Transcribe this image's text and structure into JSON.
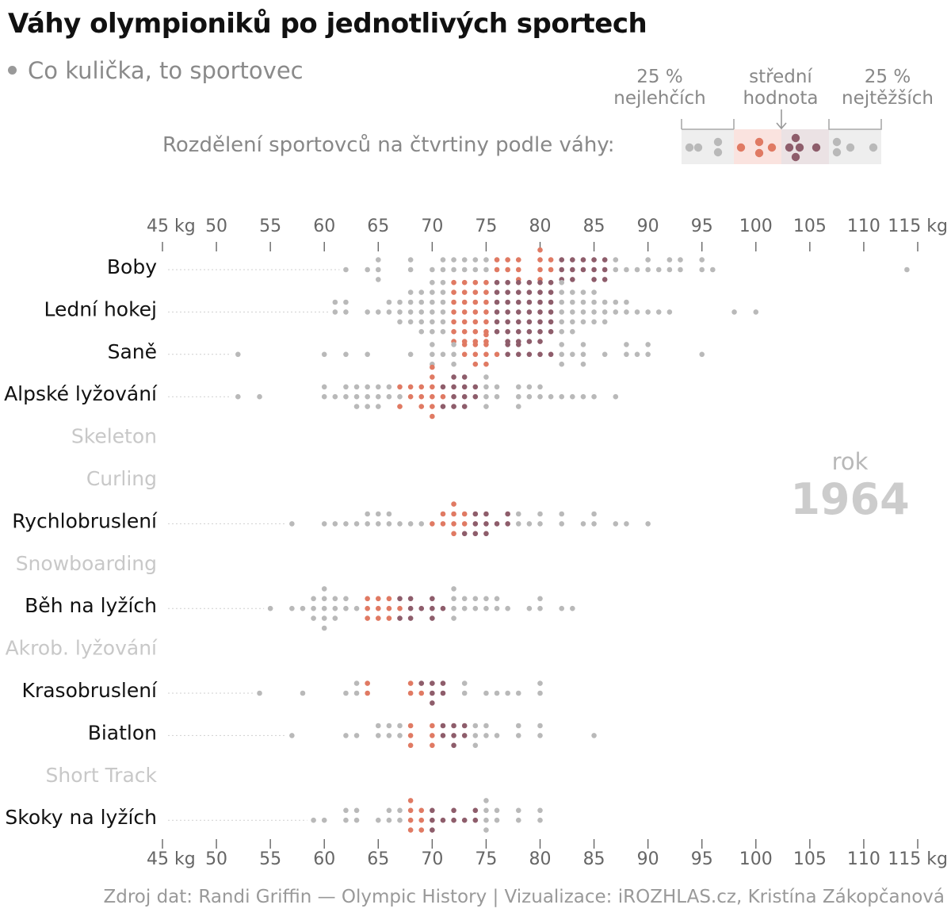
{
  "title": "Váhy olympioniků po jednotlivých sportech",
  "subtitle": "Co kulička, to sportovec",
  "legend": {
    "text": "Rozdělení sportovců na čtvrtiny podle váhy:",
    "lightest_pct": "25 %",
    "lightest_word": "nejlehčích",
    "median_top": "střední",
    "median_bottom": "hodnota",
    "heaviest_pct": "25 %",
    "heaviest_word": "nejtěžších"
  },
  "year_label": "rok",
  "year_value": "1964",
  "source": "Zdroj dat: Randi Griffin — Olympic History  |  Vizualizace: iROZHLAS.cz, Kristína Zákopčanová",
  "colors": {
    "outer": "#b9b9b9",
    "q2": "#e07a63",
    "q3": "#8e5d6b",
    "label_active": "#111111",
    "label_inactive": "#c8c8c8",
    "axis": "#666666"
  },
  "chart_data": {
    "type": "scatter",
    "subtype": "beeswarm",
    "x_unit": "kg",
    "xlim": [
      45,
      115
    ],
    "ticks": [
      {
        "v": 45,
        "label": "45 kg"
      },
      {
        "v": 50,
        "label": "50"
      },
      {
        "v": 55,
        "label": "55"
      },
      {
        "v": 60,
        "label": "60"
      },
      {
        "v": 65,
        "label": "65"
      },
      {
        "v": 70,
        "label": "70"
      },
      {
        "v": 75,
        "label": "75"
      },
      {
        "v": 80,
        "label": "80"
      },
      {
        "v": 85,
        "label": "85"
      },
      {
        "v": 90,
        "label": "90"
      },
      {
        "v": 95,
        "label": "95"
      },
      {
        "v": 100,
        "label": "100"
      },
      {
        "v": 105,
        "label": "105"
      },
      {
        "v": 110,
        "label": "110"
      },
      {
        "v": 115,
        "label": "115 kg"
      }
    ],
    "sports": [
      {
        "name": "Boby",
        "active": true,
        "min": 62,
        "max": 114,
        "groups": [
          {
            "q": 1,
            "weights": [
              62,
              64,
              65,
              65,
              65,
              68,
              68,
              70,
              71,
              71,
              72,
              72,
              73,
              73,
              74,
              74,
              75,
              75
            ]
          },
          {
            "q": 2,
            "weights": [
              76,
              76,
              77,
              77,
              78,
              78,
              78,
              80,
              80,
              80,
              80,
              81,
              81
            ]
          },
          {
            "q": 3,
            "weights": [
              82,
              82,
              82,
              83,
              83,
              83,
              84,
              84,
              85,
              85,
              85,
              86,
              86,
              86
            ]
          },
          {
            "q": 4,
            "weights": [
              87,
              87,
              88,
              89,
              90,
              90,
              91,
              92,
              92,
              93,
              93,
              95,
              95,
              96,
              114
            ]
          }
        ]
      },
      {
        "name": "Lední hokej",
        "active": true,
        "min": 61,
        "max": 100,
        "groups": [
          {
            "q": 1,
            "weights": [
              61,
              61,
              62,
              62,
              64,
              65,
              66,
              66,
              67,
              67,
              67,
              68,
              68,
              68,
              68,
              69,
              69,
              69,
              69,
              69,
              70,
              70,
              70,
              70,
              70,
              70,
              71,
              71,
              71,
              71,
              71,
              71
            ]
          },
          {
            "q": 2,
            "weights": [
              72,
              72,
              72,
              72,
              72,
              72,
              72,
              73,
              73,
              73,
              73,
              73,
              73,
              73,
              74,
              74,
              74,
              74,
              74,
              74,
              74,
              75,
              75,
              75,
              75,
              75,
              75,
              75
            ]
          },
          {
            "q": 3,
            "weights": [
              76,
              76,
              76,
              76,
              76,
              76,
              77,
              77,
              77,
              77,
              77,
              77,
              77,
              78,
              78,
              78,
              78,
              78,
              78,
              78,
              79,
              79,
              79,
              79,
              79,
              79,
              79,
              80,
              80,
              80,
              80,
              80,
              80,
              80,
              81,
              81,
              81,
              81,
              81,
              81
            ]
          },
          {
            "q": 4,
            "weights": [
              82,
              82,
              82,
              82,
              82,
              82,
              83,
              83,
              83,
              83,
              83,
              84,
              84,
              84,
              84,
              85,
              85,
              85,
              85,
              86,
              86,
              86,
              87,
              87,
              88,
              88,
              89,
              90,
              91,
              92,
              98,
              100
            ]
          }
        ]
      },
      {
        "name": "Saně",
        "active": true,
        "min": 52,
        "max": 95,
        "groups": [
          {
            "q": 1,
            "weights": [
              52,
              60,
              62,
              64,
              68,
              70,
              70,
              70,
              71,
              72,
              72,
              72
            ]
          },
          {
            "q": 2,
            "weights": [
              73,
              73,
              74,
              74,
              74,
              75,
              75,
              75,
              75,
              76
            ]
          },
          {
            "q": 3,
            "weights": [
              77,
              77,
              78,
              78,
              79,
              80,
              81
            ]
          },
          {
            "q": 4,
            "weights": [
              82,
              82,
              82,
              83,
              84,
              84,
              84,
              86,
              88,
              88,
              89,
              90,
              90,
              95
            ]
          }
        ]
      },
      {
        "name": "Alpské lyžování",
        "active": true,
        "min": 52,
        "max": 87,
        "groups": [
          {
            "q": 1,
            "weights": [
              52,
              54,
              60,
              60,
              61,
              62,
              62,
              63,
              63,
              63,
              64,
              64,
              64,
              65,
              65,
              65,
              66,
              66,
              67
            ]
          },
          {
            "q": 2,
            "weights": [
              67,
              67,
              68,
              68,
              69,
              69,
              69,
              70,
              70,
              70,
              70,
              70,
              70,
              71
            ]
          },
          {
            "q": 3,
            "weights": [
              71,
              71,
              72,
              72,
              72,
              72,
              73,
              73,
              73,
              73,
              74,
              74
            ]
          },
          {
            "q": 4,
            "weights": [
              75,
              75,
              75,
              75,
              76,
              76,
              78,
              78,
              78,
              79,
              79,
              80,
              80,
              81,
              82,
              83,
              84,
              85,
              87
            ]
          }
        ]
      },
      {
        "name": "Skeleton",
        "active": false,
        "groups": []
      },
      {
        "name": "Curling",
        "active": false,
        "groups": []
      },
      {
        "name": "Rychlobruslení",
        "active": true,
        "min": 57,
        "max": 90,
        "groups": [
          {
            "q": 1,
            "weights": [
              57,
              60,
              61,
              62,
              63,
              64,
              64,
              65,
              65,
              66,
              66,
              67,
              68,
              69
            ]
          },
          {
            "q": 2,
            "weights": [
              70,
              71,
              71,
              72,
              72,
              72,
              72,
              73,
              73
            ]
          },
          {
            "q": 3,
            "weights": [
              73,
              74,
              74,
              74,
              75,
              75,
              75,
              76,
              77,
              77
            ]
          },
          {
            "q": 4,
            "weights": [
              78,
              78,
              79,
              80,
              80,
              82,
              82,
              84,
              85,
              85,
              87,
              88,
              90
            ]
          }
        ]
      },
      {
        "name": "Snowboarding",
        "active": false,
        "groups": []
      },
      {
        "name": "Běh na lyžích",
        "active": true,
        "min": 55,
        "max": 83,
        "groups": [
          {
            "q": 1,
            "weights": [
              55,
              57,
              58,
              59,
              59,
              59,
              60,
              60,
              60,
              60,
              60,
              61,
              61,
              61,
              62,
              62,
              63
            ]
          },
          {
            "q": 2,
            "weights": [
              64,
              64,
              64,
              65,
              65,
              65,
              66,
              66,
              66,
              67
            ]
          },
          {
            "q": 3,
            "weights": [
              67,
              67,
              68,
              68,
              68,
              69,
              70,
              70,
              70,
              71
            ]
          },
          {
            "q": 4,
            "weights": [
              72,
              72,
              72,
              72,
              73,
              73,
              74,
              74,
              75,
              75,
              76,
              76,
              77,
              79,
              80,
              80,
              82,
              83
            ]
          }
        ]
      },
      {
        "name": "Akrob. lyžování",
        "active": false,
        "groups": []
      },
      {
        "name": "Krasobruslení",
        "active": true,
        "min": 54,
        "max": 80,
        "groups": [
          {
            "q": 1,
            "weights": [
              54,
              58,
              62,
              63,
              63
            ]
          },
          {
            "q": 2,
            "weights": [
              64,
              64,
              68,
              68,
              69
            ]
          },
          {
            "q": 3,
            "weights": [
              69,
              70,
              70,
              70,
              71,
              71
            ]
          },
          {
            "q": 4,
            "weights": [
              73,
              73,
              75,
              76,
              77,
              78,
              80,
              80
            ]
          }
        ]
      },
      {
        "name": "Biatlon",
        "active": true,
        "min": 57,
        "max": 85,
        "groups": [
          {
            "q": 1,
            "weights": [
              57,
              62,
              63,
              65,
              65,
              66,
              66,
              67,
              67
            ]
          },
          {
            "q": 2,
            "weights": [
              68,
              68,
              68,
              70,
              70,
              70
            ]
          },
          {
            "q": 3,
            "weights": [
              71,
              71,
              72,
              72,
              72,
              73,
              73
            ]
          },
          {
            "q": 4,
            "weights": [
              74,
              74,
              74,
              75,
              75,
              76,
              78,
              78,
              80,
              80,
              85
            ]
          }
        ]
      },
      {
        "name": "Short Track",
        "active": false,
        "groups": []
      },
      {
        "name": "Skoky na lyžích",
        "active": true,
        "min": 59,
        "max": 80,
        "groups": [
          {
            "q": 1,
            "weights": [
              59,
              60,
              62,
              62,
              63,
              63,
              65,
              66,
              66,
              67,
              67
            ]
          },
          {
            "q": 2,
            "weights": [
              68,
              68,
              68,
              68,
              69,
              69,
              69
            ]
          },
          {
            "q": 3,
            "weights": [
              70,
              70,
              70,
              71,
              72,
              72,
              73,
              74,
              74
            ]
          },
          {
            "q": 4,
            "weights": [
              75,
              75,
              75,
              75,
              76,
              76,
              78,
              78,
              80,
              80
            ]
          }
        ]
      }
    ]
  }
}
